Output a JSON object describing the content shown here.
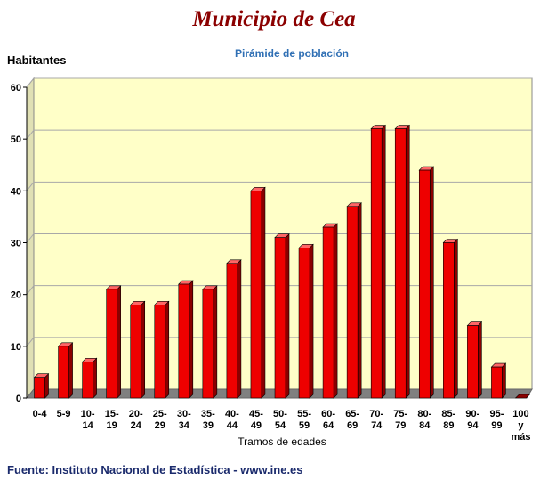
{
  "header": {
    "title": "Municipio de Cea",
    "subtitle": "Pirámide de población"
  },
  "footer": {
    "source": "Fuente: Instituto Nacional de Estadística - www.ine.es"
  },
  "colors": {
    "bar": "#ee0000",
    "bar_side": "#8a0000",
    "bar_top": "#ff6666",
    "plot_bg": "#ffffc8",
    "floor": "#808080"
  },
  "chart_data": {
    "type": "bar",
    "title": "Pirámide de población",
    "ylabel": "Habitantes",
    "xlabel": "Tramos de edades",
    "ylim": [
      0,
      60
    ],
    "yticks": [
      0,
      10,
      20,
      30,
      40,
      50,
      60
    ],
    "grid": true,
    "categories": [
      "0-4",
      "5-9",
      "10-14",
      "15-19",
      "20-24",
      "25-29",
      "30-34",
      "35-39",
      "40-44",
      "45-49",
      "50-54",
      "55-59",
      "60-64",
      "65-69",
      "70-74",
      "75-79",
      "80-84",
      "85-89",
      "90-94",
      "95-99",
      "100 y más"
    ],
    "category_lines": [
      [
        "0-4"
      ],
      [
        "5-9"
      ],
      [
        "10-",
        "14"
      ],
      [
        "15-",
        "19"
      ],
      [
        "20-",
        "24"
      ],
      [
        "25-",
        "29"
      ],
      [
        "30-",
        "34"
      ],
      [
        "35-",
        "39"
      ],
      [
        "40-",
        "44"
      ],
      [
        "45-",
        "49"
      ],
      [
        "50-",
        "54"
      ],
      [
        "55-",
        "59"
      ],
      [
        "60-",
        "64"
      ],
      [
        "65-",
        "69"
      ],
      [
        "70-",
        "74"
      ],
      [
        "75-",
        "79"
      ],
      [
        "80-",
        "84"
      ],
      [
        "85-",
        "89"
      ],
      [
        "90-",
        "94"
      ],
      [
        "95-",
        "99"
      ],
      [
        "100",
        "y",
        "más"
      ]
    ],
    "values": [
      4,
      10,
      7,
      21,
      18,
      18,
      22,
      21,
      26,
      40,
      31,
      29,
      33,
      37,
      52,
      52,
      44,
      30,
      14,
      6,
      0
    ]
  }
}
